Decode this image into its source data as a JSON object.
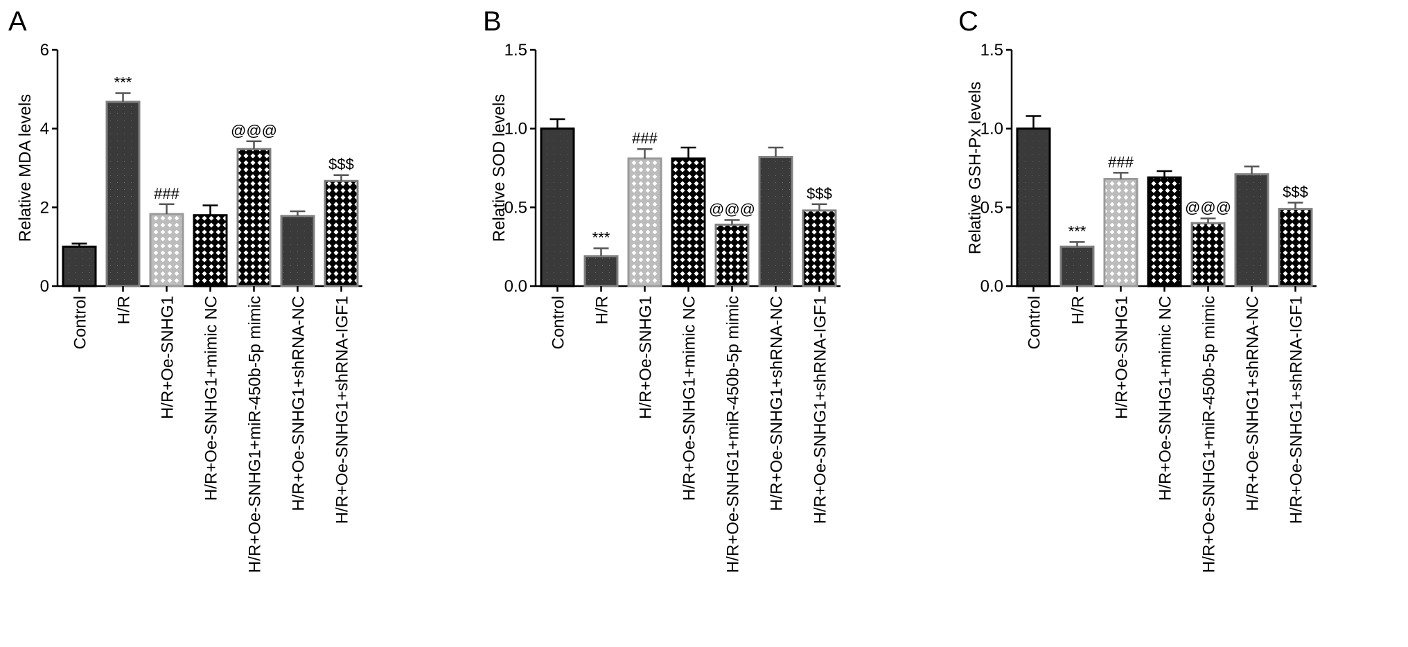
{
  "chart_data": [
    {
      "type": "bar",
      "panel": "A",
      "title": "",
      "xlabel": "",
      "ylabel": "Relative MDA levels",
      "ylim": [
        0,
        6
      ],
      "yticks": [
        0,
        2,
        4,
        6
      ],
      "yticklabels": [
        "0",
        "2",
        "4",
        "6"
      ],
      "categories": [
        "Control",
        "H/R",
        "H/R+Oe-SNHG1",
        "H/R+Oe-SNHG1+mimic NC",
        "H/R+Oe-SNHG1+miR-450b-5p mimic",
        "H/R+Oe-SNHG1+shRNA-NC",
        "H/R+Oe-SNHG1+shRNA-IGF1"
      ],
      "values": [
        1.0,
        4.68,
        1.83,
        1.8,
        3.48,
        1.78,
        2.67
      ],
      "errors": [
        0.08,
        0.22,
        0.25,
        0.25,
        0.2,
        0.12,
        0.15
      ],
      "annotations": [
        "",
        "***",
        "###",
        "",
        "@@@",
        "",
        "$$$"
      ],
      "grid": false
    },
    {
      "type": "bar",
      "panel": "B",
      "title": "",
      "xlabel": "",
      "ylabel": "Relative SOD levels",
      "ylim": [
        0,
        1.5
      ],
      "yticks": [
        0,
        0.5,
        1.0,
        1.5
      ],
      "yticklabels": [
        "0.0",
        "0.5",
        "1.0",
        "1.5"
      ],
      "categories": [
        "Control",
        "H/R",
        "H/R+Oe-SNHG1",
        "H/R+Oe-SNHG1+mimic NC",
        "H/R+Oe-SNHG1+miR-450b-5p mimic",
        "H/R+Oe-SNHG1+shRNA-NC",
        "H/R+Oe-SNHG1+shRNA-IGF1"
      ],
      "values": [
        1.0,
        0.19,
        0.81,
        0.81,
        0.39,
        0.82,
        0.48
      ],
      "errors": [
        0.06,
        0.05,
        0.06,
        0.07,
        0.03,
        0.06,
        0.04
      ],
      "annotations": [
        "",
        "***",
        "###",
        "",
        "@@@",
        "",
        "$$$"
      ],
      "grid": false
    },
    {
      "type": "bar",
      "panel": "C",
      "title": "",
      "xlabel": "",
      "ylabel": "Relative GSH-Px levels",
      "ylim": [
        0,
        1.5
      ],
      "yticks": [
        0,
        0.5,
        1.0,
        1.5
      ],
      "yticklabels": [
        "0.0",
        "0.5",
        "1.0",
        "1.5"
      ],
      "categories": [
        "Control",
        "H/R",
        "H/R+Oe-SNHG1",
        "H/R+Oe-SNHG1+mimic NC",
        "H/R+Oe-SNHG1+miR-450b-5p mimic",
        "H/R+Oe-SNHG1+shRNA-NC",
        "H/R+Oe-SNHG1+shRNA-IGF1"
      ],
      "values": [
        1.0,
        0.25,
        0.68,
        0.69,
        0.4,
        0.71,
        0.49
      ],
      "errors": [
        0.08,
        0.03,
        0.04,
        0.04,
        0.03,
        0.05,
        0.04
      ],
      "annotations": [
        "",
        "***",
        "###",
        "",
        "@@@",
        "",
        "$$$"
      ],
      "grid": false
    }
  ],
  "styles": {
    "bar_patterns": [
      "pat-dark",
      "pat-dark",
      "pat-light",
      "pat-plain",
      "pat-plain",
      "pat-dark",
      "pat-plain"
    ],
    "bar_borders": [
      "#000000",
      "#808080",
      "#9a9a9a",
      "#000000",
      "#808080",
      "#808080",
      "#808080"
    ],
    "colors": {
      "dark_fill": "#3a3a3a",
      "light_fill": "#bcbcbc",
      "plain_fill": "#000000",
      "dot": "#ffffff",
      "axis": "#000000"
    }
  }
}
